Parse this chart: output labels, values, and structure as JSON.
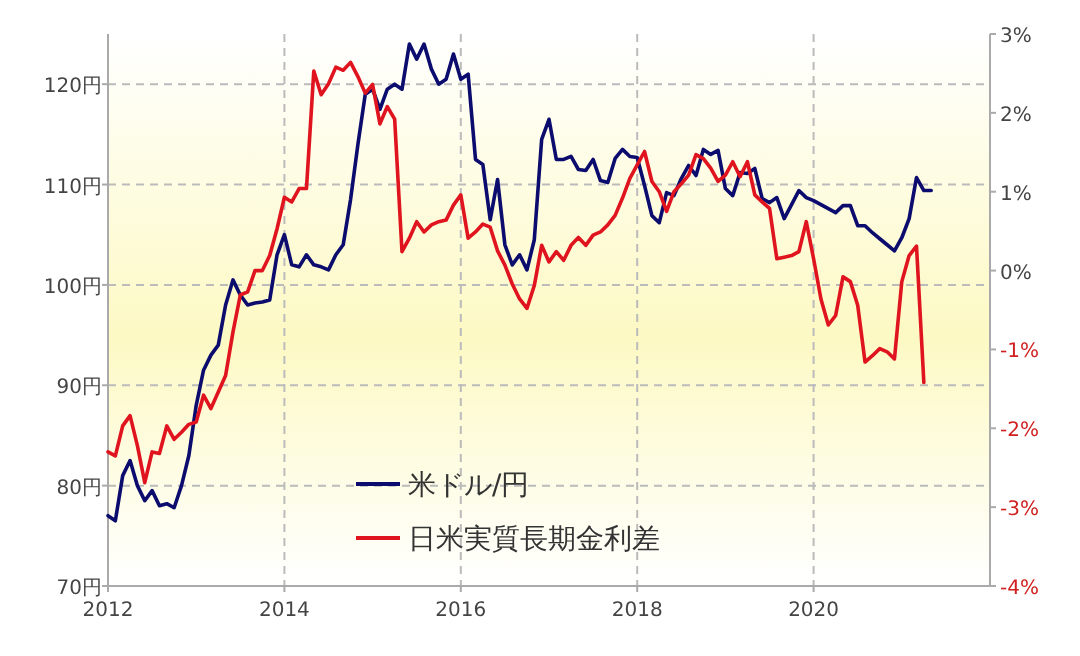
{
  "chart_data": {
    "type": "line",
    "xlim": [
      "2012-01",
      "2022-01"
    ],
    "xticks": [
      "2012",
      "2014",
      "2016",
      "2018",
      "2020"
    ],
    "ylim": [
      70,
      125
    ],
    "yticks": [
      {
        "value": 70,
        "label": "70円"
      },
      {
        "value": 80,
        "label": "80円"
      },
      {
        "value": 90,
        "label": "90円"
      },
      {
        "value": 100,
        "label": "100円"
      },
      {
        "value": 110,
        "label": "110円"
      },
      {
        "value": 120,
        "label": "120円"
      }
    ],
    "y2lim": [
      -4,
      3
    ],
    "y2ticks": [
      {
        "value": 3,
        "label": "3%"
      },
      {
        "value": 2,
        "label": "2%"
      },
      {
        "value": 1,
        "label": "1%"
      },
      {
        "value": 0,
        "label": "0%"
      },
      {
        "value": -1,
        "label": "-1%"
      },
      {
        "value": -2,
        "label": "-2%"
      },
      {
        "value": -3,
        "label": "-3%"
      },
      {
        "value": -4,
        "label": "-4%"
      }
    ],
    "grid": true,
    "legend": "bottom",
    "line_style": "solid",
    "marker": "none",
    "series": [
      {
        "name": "米ドル/円",
        "color": "#0c0c6e",
        "x": [
          "2012-01",
          "2012-02",
          "2012-03",
          "2012-04",
          "2012-05",
          "2012-06",
          "2012-07",
          "2012-08",
          "2012-09",
          "2012-10",
          "2012-11",
          "2012-12",
          "2013-01",
          "2013-02",
          "2013-03",
          "2013-04",
          "2013-05",
          "2013-06",
          "2013-07",
          "2013-08",
          "2013-09",
          "2013-10",
          "2013-11",
          "2013-12",
          "2014-01",
          "2014-02",
          "2014-03",
          "2014-04",
          "2014-05",
          "2014-06",
          "2014-07",
          "2014-08",
          "2014-09",
          "2014-10",
          "2014-11",
          "2014-12",
          "2015-01",
          "2015-02",
          "2015-03",
          "2015-04",
          "2015-05",
          "2015-06",
          "2015-07",
          "2015-08",
          "2015-09",
          "2015-10",
          "2015-11",
          "2015-12",
          "2016-01",
          "2016-02",
          "2016-03",
          "2016-04",
          "2016-05",
          "2016-06",
          "2016-07",
          "2016-08",
          "2016-09",
          "2016-10",
          "2016-11",
          "2016-12",
          "2017-01",
          "2017-02",
          "2017-03",
          "2017-04",
          "2017-05",
          "2017-06",
          "2017-07",
          "2017-08",
          "2017-09",
          "2017-10",
          "2017-11",
          "2017-12",
          "2018-01",
          "2018-02",
          "2018-03",
          "2018-04",
          "2018-05",
          "2018-06",
          "2018-07",
          "2018-08",
          "2018-09",
          "2018-10",
          "2018-11",
          "2018-12",
          "2019-01",
          "2019-02",
          "2019-03",
          "2019-04",
          "2019-05",
          "2019-06",
          "2019-07",
          "2019-08",
          "2019-09",
          "2019-10",
          "2019-11",
          "2019-12",
          "2020-01",
          "2020-02",
          "2020-03",
          "2020-04",
          "2020-05",
          "2020-06",
          "2020-07",
          "2020-08",
          "2020-09",
          "2020-10",
          "2020-11",
          "2020-12",
          "2021-01",
          "2021-02",
          "2021-03",
          "2021-04",
          "2021-05"
        ],
        "values": [
          77,
          76.5,
          81,
          82.5,
          80,
          78.5,
          79.5,
          78,
          78.2,
          77.8,
          80,
          83,
          88,
          91.5,
          93,
          94,
          98,
          100.5,
          99,
          98,
          98.2,
          98.3,
          98.5,
          103,
          105,
          102,
          101.8,
          103,
          102,
          101.8,
          101.5,
          103,
          104,
          108.5,
          114,
          119,
          119.5,
          117.5,
          119.5,
          120,
          119.5,
          124,
          122.5,
          124,
          121.5,
          120,
          120.5,
          123,
          120.5,
          121,
          112.5,
          112,
          106.5,
          110.5,
          104,
          102,
          103,
          101.5,
          104.5,
          114.5,
          116.5,
          112.5,
          112.5,
          112.8,
          111.5,
          111.4,
          112.5,
          110.4,
          110.2,
          112.6,
          113.5,
          112.8,
          112.7,
          109.9,
          106.9,
          106.2,
          109.2,
          108.9,
          110.6,
          111.9,
          110.9,
          113.5,
          113,
          113.4,
          109.6,
          108.9,
          111.2,
          111.1,
          111.6,
          108.6,
          108.2,
          108.7,
          106.6,
          108,
          109.4,
          108.7,
          108.4,
          108,
          107.6,
          107.2,
          107.9,
          107.9,
          105.9,
          105.9,
          105.2,
          104.6,
          104,
          103.4,
          104.7,
          106.6,
          110.7,
          109.4,
          109.4
        ]
      },
      {
        "name": "日米実質長期金利差",
        "color": "#e0141e",
        "axis": "y2",
        "x": [
          "2012-01",
          "2012-02",
          "2012-03",
          "2012-04",
          "2012-05",
          "2012-06",
          "2012-07",
          "2012-08",
          "2012-09",
          "2012-10",
          "2012-11",
          "2012-12",
          "2013-01",
          "2013-02",
          "2013-03",
          "2013-04",
          "2013-05",
          "2013-06",
          "2013-07",
          "2013-08",
          "2013-09",
          "2013-10",
          "2013-11",
          "2013-12",
          "2014-01",
          "2014-02",
          "2014-03",
          "2014-04",
          "2014-05",
          "2014-06",
          "2014-07",
          "2014-08",
          "2014-09",
          "2014-10",
          "2014-11",
          "2014-12",
          "2015-01",
          "2015-02",
          "2015-03",
          "2015-04",
          "2015-05",
          "2015-06",
          "2015-07",
          "2015-08",
          "2015-09",
          "2015-10",
          "2015-11",
          "2015-12",
          "2016-01",
          "2016-02",
          "2016-03",
          "2016-04",
          "2016-05",
          "2016-06",
          "2016-07",
          "2016-08",
          "2016-09",
          "2016-10",
          "2016-11",
          "2016-12",
          "2017-01",
          "2017-02",
          "2017-03",
          "2017-04",
          "2017-05",
          "2017-06",
          "2017-07",
          "2017-08",
          "2017-09",
          "2017-10",
          "2017-11",
          "2017-12",
          "2018-01",
          "2018-02",
          "2018-03",
          "2018-04",
          "2018-05",
          "2018-06",
          "2018-07",
          "2018-08",
          "2018-09",
          "2018-10",
          "2018-11",
          "2018-12",
          "2019-01",
          "2019-02",
          "2019-03",
          "2019-04",
          "2019-05",
          "2019-06",
          "2019-07",
          "2019-08",
          "2019-09",
          "2019-10",
          "2019-11",
          "2019-12",
          "2020-01",
          "2020-02",
          "2020-03",
          "2020-04",
          "2020-05",
          "2020-06",
          "2020-07",
          "2020-08",
          "2020-09",
          "2020-10",
          "2020-11",
          "2020-12",
          "2021-01",
          "2021-02",
          "2021-03",
          "2021-04"
        ],
        "values": [
          -2.3,
          -2.35,
          -1.97,
          -1.84,
          -2.22,
          -2.69,
          -2.3,
          -2.32,
          -1.97,
          -2.14,
          -2.05,
          -1.95,
          -1.92,
          -1.58,
          -1.75,
          -1.54,
          -1.33,
          -0.78,
          -0.31,
          -0.27,
          0,
          0,
          0.19,
          0.53,
          0.93,
          0.87,
          1.04,
          1.04,
          2.53,
          2.23,
          2.37,
          2.58,
          2.54,
          2.64,
          2.46,
          2.25,
          2.36,
          1.86,
          2.08,
          1.92,
          0.24,
          0.41,
          0.62,
          0.49,
          0.58,
          0.62,
          0.64,
          0.83,
          0.96,
          0.41,
          0.49,
          0.59,
          0.55,
          0.25,
          0.07,
          -0.17,
          -0.36,
          -0.48,
          -0.19,
          0.32,
          0.11,
          0.24,
          0.13,
          0.32,
          0.42,
          0.32,
          0.45,
          0.49,
          0.58,
          0.7,
          0.92,
          1.17,
          1.34,
          1.51,
          1.13,
          1,
          0.75,
          1,
          1.1,
          1.21,
          1.47,
          1.42,
          1.3,
          1.13,
          1.21,
          1.38,
          1.19,
          1.38,
          0.96,
          0.87,
          0.79,
          0.15,
          0.17,
          0.19,
          0.24,
          0.62,
          0.15,
          -0.36,
          -0.69,
          -0.57,
          -0.08,
          -0.14,
          -0.44,
          -1.16,
          -1.08,
          -0.99,
          -1.03,
          -1.12,
          -0.14,
          0.19,
          0.31,
          -1.42
        ]
      }
    ]
  }
}
